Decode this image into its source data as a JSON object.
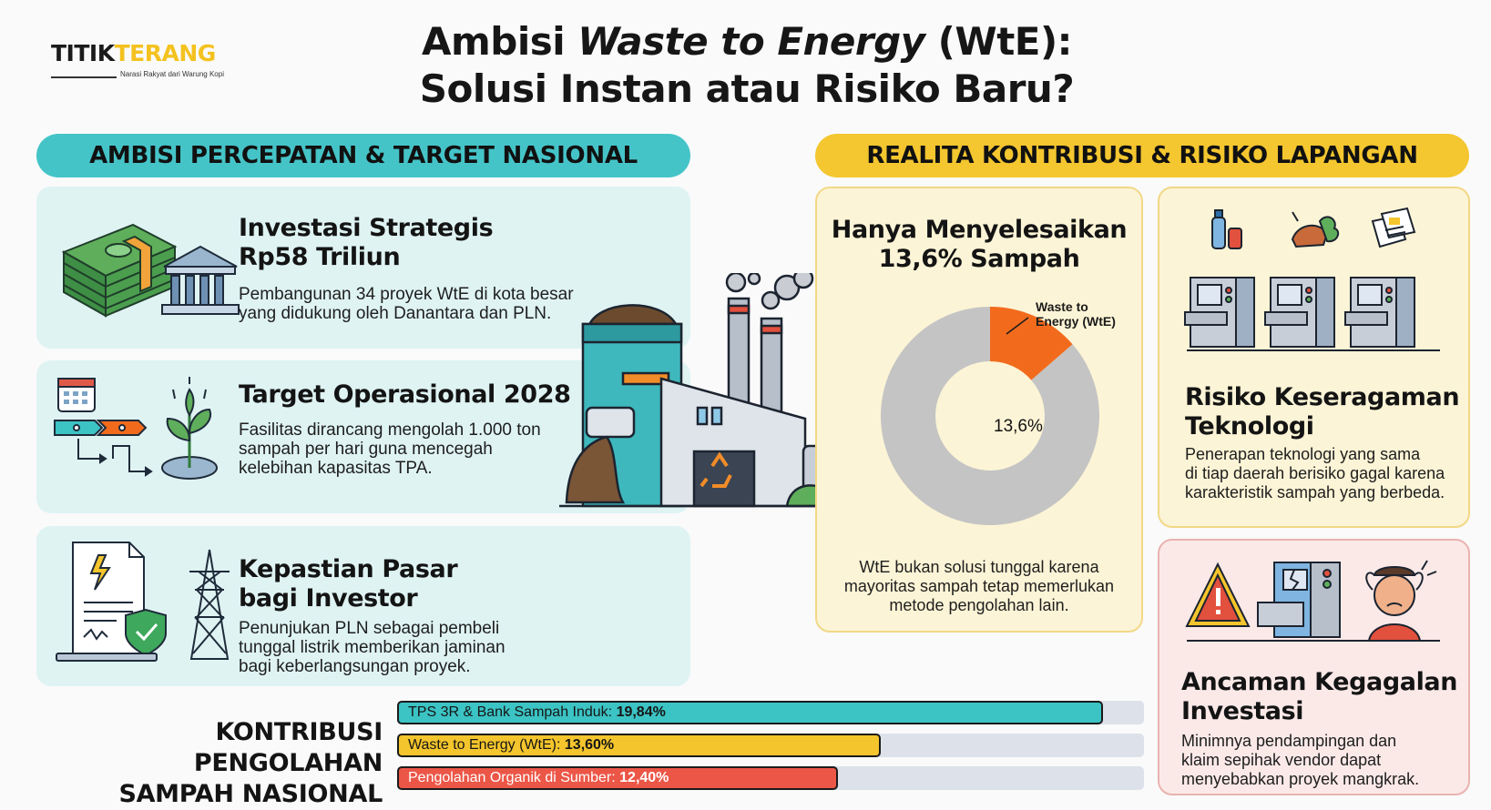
{
  "logo": {
    "part1": "TITIK",
    "part2": "TERANG",
    "tagline": "Narasi Rakyat dari Warung Kopi"
  },
  "title": {
    "line1_pre": "Ambisi ",
    "line1_em": "Waste to Energy",
    "line1_post": " (WtE):",
    "line2": "Solusi Instan atau Risiko Baru?"
  },
  "left_section": {
    "heading": "AMBISI PERCEPATAN & TARGET NASIONAL",
    "cards": [
      {
        "title_l1": "Investasi Strategis",
        "title_l2": "Rp58 Triliun",
        "desc_l1": "Pembangunan 34 proyek WtE di kota besar",
        "desc_l2": "yang didukung oleh Danantara dan PLN."
      },
      {
        "title_l1": "Target Operasional 2028",
        "desc_l1": "Fasilitas dirancang mengolah 1.000 ton",
        "desc_l2": "sampah per hari guna mencegah",
        "desc_l3": "kelebihan kapasitas TPA."
      },
      {
        "title_l1": "Kepastian Pasar",
        "title_l2": "bagi Investor",
        "desc_l1": "Penunjukan PLN sebagai pembeli",
        "desc_l2": "tunggal listrik memberikan jaminan",
        "desc_l3": "bagi keberlangsungan proyek."
      }
    ]
  },
  "right_section": {
    "heading": "REALITA KONTRIBUSI & RISIKO LAPANGAN",
    "donut_card": {
      "title_l1": "Hanya Menyelesaikan",
      "title_l2": "13,6% Sampah",
      "callout_l1": "Waste to",
      "callout_l2": "Energy (WtE)",
      "slice_label": "13,6%",
      "slice_fraction": 0.136,
      "desc_l1": "WtE bukan solusi tunggal karena",
      "desc_l2": "mayoritas sampah tetap memerlukan",
      "desc_l3": "metode pengolahan lain."
    },
    "tech_card": {
      "title_l1": "Risiko Keseragaman",
      "title_l2": "Teknologi",
      "desc_l1": "Penerapan teknologi yang sama",
      "desc_l2": "di tiap daerah berisiko gagal karena",
      "desc_l3": "karakteristik sampah yang berbeda."
    },
    "risk_card": {
      "title_l1": "Ancaman Kegagalan",
      "title_l2": "Investasi",
      "desc_l1": "Minimnya pendampingan dan",
      "desc_l2": "klaim sepihak vendor dapat",
      "desc_l3": "menyebabkan proyek mangkrak."
    }
  },
  "contrib": {
    "label_l1": "KONTRIBUSI PENGOLAHAN",
    "label_l2": "SAMPAH NASIONAL",
    "bars": [
      {
        "name": "TPS 3R & Bank Sampah Induk: ",
        "value_text": "19,84%",
        "value": 19.84,
        "color": "#3cc3c4"
      },
      {
        "name": "Waste to Energy (WtE): ",
        "value_text": "13,60%",
        "value": 13.6,
        "color": "#f4c52c"
      },
      {
        "name": "Pengolahan Organik di Sumber: ",
        "value_text": "12,40%",
        "value": 12.4,
        "color": "#ec5647"
      }
    ]
  },
  "colors": {
    "teal": "#45c4c8",
    "yellow": "#f4c62f",
    "orange": "#f26b1d",
    "grey": "#c4c4c4",
    "red": "#ec5647"
  }
}
